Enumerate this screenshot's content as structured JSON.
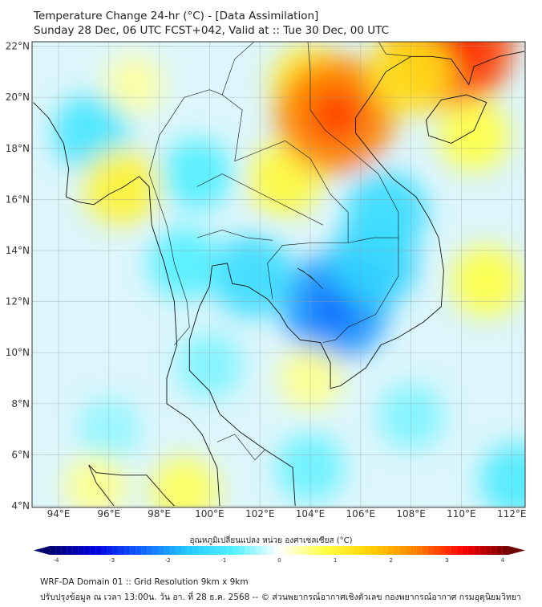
{
  "header": {
    "title": "Temperature Change 24-hr (°C) - [Data Assimilation]",
    "subtitle": "Sunday 28 Dec, 06 UTC FCST+042, Valid at :: Tue 30 Dec, 00 UTC"
  },
  "chart_data": {
    "type": "heatmap",
    "title": "Temperature Change 24-hr (°C) - [Data Assimilation]",
    "xlabel": "",
    "ylabel": "",
    "xlim": [
      93,
      112.5
    ],
    "ylim": [
      4,
      22.2
    ],
    "grid": true,
    "x_ticks": [
      "94°E",
      "96°E",
      "98°E",
      "100°E",
      "102°E",
      "104°E",
      "106°E",
      "108°E",
      "110°E",
      "112°E"
    ],
    "x_tick_values": [
      94,
      96,
      98,
      100,
      102,
      104,
      106,
      108,
      110,
      112
    ],
    "y_ticks": [
      "22°N",
      "20°N",
      "18°N",
      "16°N",
      "14°N",
      "12°N",
      "10°N",
      "8°N",
      "6°N",
      "4°N"
    ],
    "y_tick_values": [
      22,
      20,
      18,
      16,
      14,
      12,
      10,
      8,
      6,
      4
    ],
    "field_features": [
      {
        "lon": 105.0,
        "lat": 11.8,
        "value": -2.0
      },
      {
        "lon": 106.5,
        "lat": 13.5,
        "value": -1.4
      },
      {
        "lon": 107.0,
        "lat": 15.5,
        "value": -1.2
      },
      {
        "lon": 101.7,
        "lat": 13.0,
        "value": -1.2
      },
      {
        "lon": 95.3,
        "lat": 18.6,
        "value": -1.0
      },
      {
        "lon": 99.5,
        "lat": 17.0,
        "value": -0.8
      },
      {
        "lon": 99.0,
        "lat": 13.5,
        "value": -0.8
      },
      {
        "lon": 100.0,
        "lat": 9.5,
        "value": -0.6
      },
      {
        "lon": 96.0,
        "lat": 7.0,
        "value": -0.5
      },
      {
        "lon": 104.0,
        "lat": 5.5,
        "value": -0.7
      },
      {
        "lon": 108.0,
        "lat": 7.5,
        "value": -0.6
      },
      {
        "lon": 112.2,
        "lat": 5.0,
        "value": -0.9
      },
      {
        "lon": 103.0,
        "lat": 16.8,
        "value": 0.9
      },
      {
        "lon": 104.0,
        "lat": 20.5,
        "value": 1.1
      },
      {
        "lon": 105.0,
        "lat": 19.3,
        "value": 2.4
      },
      {
        "lon": 109.5,
        "lat": 22.1,
        "value": 2.8
      },
      {
        "lon": 108.0,
        "lat": 21.0,
        "value": 1.3
      },
      {
        "lon": 110.5,
        "lat": 18.5,
        "value": 0.8
      },
      {
        "lon": 96.5,
        "lat": 16.5,
        "value": 1.0
      },
      {
        "lon": 111.0,
        "lat": 12.8,
        "value": 0.8
      },
      {
        "lon": 104.0,
        "lat": 9.0,
        "value": 0.5
      },
      {
        "lon": 99.0,
        "lat": 4.6,
        "value": 0.7
      },
      {
        "lon": 95.5,
        "lat": 4.8,
        "value": 0.5
      },
      {
        "lon": 97.0,
        "lat": 20.5,
        "value": 0.4
      }
    ],
    "colorbar": {
      "label": "อุณหภูมิเปลี่ยนแปลง หน่วย องศาเซลเซียส (°C)",
      "min": -4,
      "max": 4,
      "ticks": [
        "-4",
        "-3",
        "-2",
        "-1",
        "0",
        "1",
        "2",
        "3",
        "4"
      ],
      "tick_values": [
        -4,
        -3,
        -2,
        -1,
        0,
        1,
        2,
        3,
        4
      ],
      "colors": [
        "#00006e",
        "#0000e0",
        "#1060ff",
        "#20c8ff",
        "#50f0ff",
        "#ffffff",
        "#ffff40",
        "#ffd000",
        "#ff8000",
        "#ff0000",
        "#700000"
      ]
    }
  },
  "footer": {
    "line1": "WRF-DA Domain 01 :: Grid Resolution 9km x 9km",
    "line2": "ปรับปรุงข้อมูล ณ เวลา 13:00น. วัน อา. ที่ 28 ธ.ค. 2568 -- © ส่วนพยากรณ์อากาศเชิงตัวเลข กองพยากรณ์อากาศ กรมอุตุนิยมวิทยา"
  }
}
